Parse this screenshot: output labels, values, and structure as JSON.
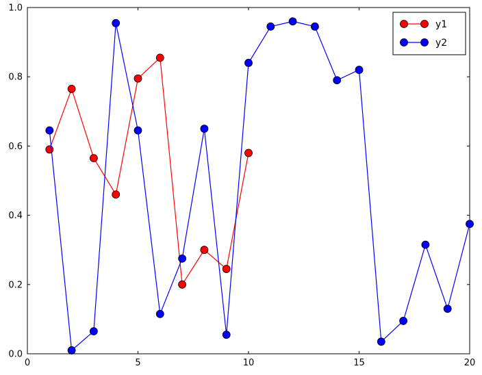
{
  "chart_data": {
    "type": "line",
    "title": "",
    "xlabel": "",
    "ylabel": "",
    "xlim": [
      0,
      20
    ],
    "ylim": [
      0.0,
      1.0
    ],
    "x_ticks": [
      0,
      5,
      10,
      15,
      20
    ],
    "y_ticks": [
      "0.0",
      "0.2",
      "0.4",
      "0.6",
      "0.8",
      "1.0"
    ],
    "grid": false,
    "legend_position": "upper right",
    "background_color": "#ffffff",
    "axis_color": "#000000",
    "series": [
      {
        "name": "y1",
        "color": "#ff0000",
        "marker": "circle",
        "x": [
          1,
          2,
          3,
          4,
          5,
          6,
          7,
          8,
          9,
          10
        ],
        "values": [
          0.59,
          0.765,
          0.565,
          0.46,
          0.795,
          0.855,
          0.2,
          0.3,
          0.245,
          0.58
        ]
      },
      {
        "name": "y2",
        "color": "#0000ff",
        "marker": "circle",
        "x": [
          1,
          2,
          3,
          4,
          5,
          6,
          7,
          8,
          9,
          10,
          11,
          12,
          13,
          14,
          15,
          16,
          17,
          18,
          19,
          20
        ],
        "values": [
          0.645,
          0.01,
          0.065,
          0.955,
          0.645,
          0.115,
          0.275,
          0.65,
          0.055,
          0.84,
          0.945,
          0.96,
          0.945,
          0.79,
          0.82,
          0.035,
          0.095,
          0.315,
          0.13,
          0.375
        ]
      }
    ]
  }
}
